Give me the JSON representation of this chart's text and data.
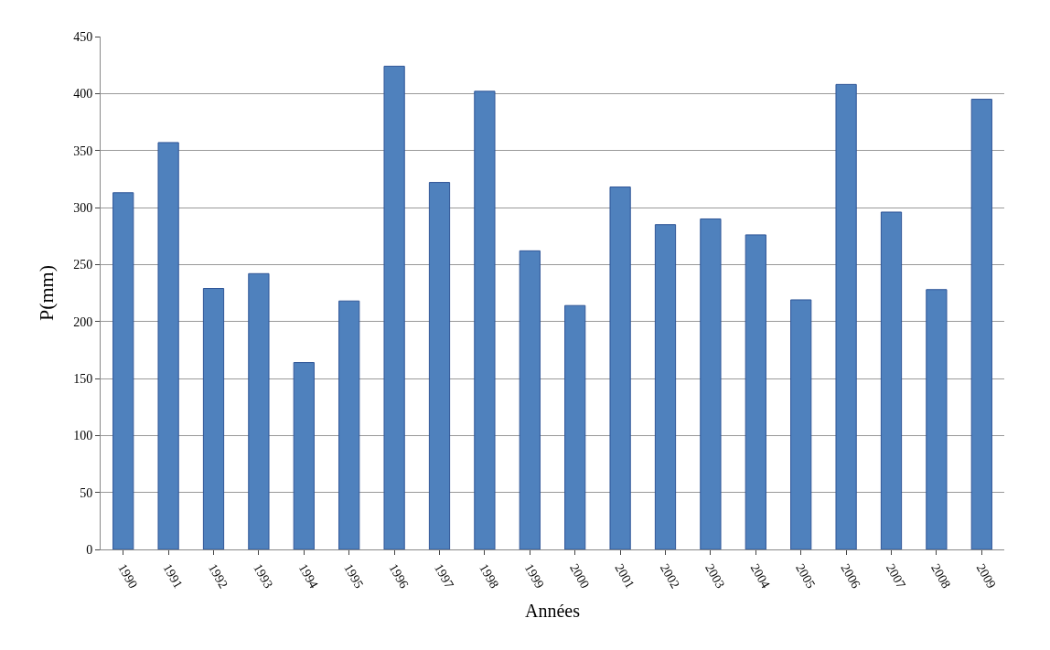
{
  "chart_data": {
    "type": "bar",
    "xlabel": "Années",
    "ylabel": "P(mm)",
    "categories": [
      "1990",
      "1991",
      "1992",
      "1993",
      "1994",
      "1995",
      "1996",
      "1997",
      "1998",
      "1999",
      "2000",
      "2001",
      "2002",
      "2003",
      "2004",
      "2005",
      "2006",
      "2007",
      "2008",
      "2009"
    ],
    "values": [
      313,
      357,
      229,
      242,
      164,
      218,
      424,
      322,
      402,
      262,
      214,
      318,
      285,
      290,
      276,
      219,
      408,
      296,
      228,
      395
    ],
    "color": "#4f81bd",
    "ylim": [
      0,
      450
    ],
    "yticks": [
      0,
      50,
      100,
      150,
      200,
      250,
      300,
      350,
      400,
      450
    ],
    "grid": "y"
  }
}
